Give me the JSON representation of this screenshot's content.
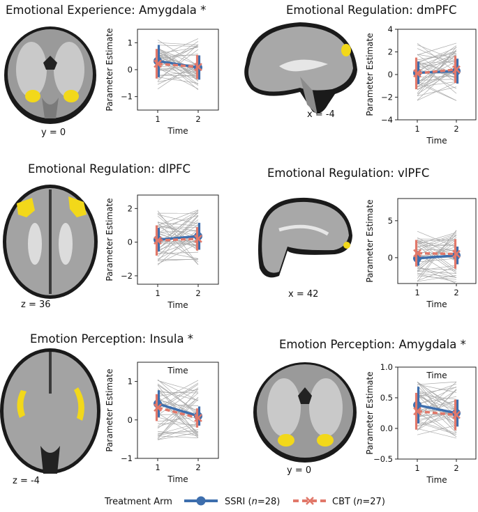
{
  "colors": {
    "ssri": "#3d6ead",
    "cbt": "#e1786a",
    "subject_lines": "#a8a8a8",
    "activation": "#f2d81a",
    "brain_gray": "#8a8a8a"
  },
  "legend": {
    "title": "Treatment Arm",
    "ssri_label": "SSRI (",
    "ssri_n": "n",
    "ssri_count": "=28)",
    "cbt_label": "CBT (",
    "cbt_n": "n",
    "cbt_count": "=27)"
  },
  "panels": [
    {
      "title": "Emotional Experience: Amygdala *",
      "brain_view": "coronal",
      "coord": "y = 0"
    },
    {
      "title": "Emotional Regulation: dmPFC",
      "brain_view": "sagittal",
      "coord": "x = -4"
    },
    {
      "title": "Emotional Regulation: dlPFC",
      "brain_view": "axial",
      "coord": "z = 36"
    },
    {
      "title": "Emotional Regulation: vlPFC",
      "brain_view": "sagittal-lateral",
      "coord": "x = 42"
    },
    {
      "title": "Emotion Perception: Insula *",
      "brain_view": "axial",
      "coord": "z = -4"
    },
    {
      "title": "Emotion Perception: Amygdala *",
      "brain_view": "coronal",
      "coord": "y = 0"
    }
  ],
  "chart_data": [
    {
      "type": "line",
      "panel_title": "Emotional Experience: Amygdala *",
      "xlabel": "Time",
      "ylabel": "Parameter Estimate",
      "x": [
        1,
        2
      ],
      "xticks": [
        "1",
        "2"
      ],
      "ylim": [
        -1.5,
        1.5
      ],
      "yticks": [
        "−1",
        "0",
        "1"
      ],
      "ytick_values": [
        -1,
        0,
        1
      ],
      "series": [
        {
          "name": "SSRI",
          "values": [
            0.32,
            0.08
          ],
          "error": [
            0.6,
            0.45
          ]
        },
        {
          "name": "CBT",
          "values": [
            0.22,
            0.1
          ],
          "error": [
            0.55,
            0.45
          ]
        }
      ]
    },
    {
      "type": "line",
      "panel_title": "Emotional Regulation: dmPFC",
      "xlabel": "Time",
      "ylabel": "Parameter Estimate",
      "x": [
        1,
        2
      ],
      "xticks": [
        "1",
        "2"
      ],
      "ylim": [
        -4,
        4
      ],
      "yticks": [
        "−4",
        "−2",
        "0",
        "2",
        "4"
      ],
      "ytick_values": [
        -4,
        -2,
        0,
        2,
        4
      ],
      "series": [
        {
          "name": "SSRI",
          "values": [
            0.15,
            0.3
          ],
          "error": [
            1.0,
            1.1
          ]
        },
        {
          "name": "CBT",
          "values": [
            0.1,
            0.45
          ],
          "error": [
            1.4,
            1.2
          ]
        }
      ]
    },
    {
      "type": "line",
      "panel_title": "Emotional Regulation: dlPFC",
      "xlabel": "Time",
      "ylabel": "Parameter Estimate",
      "x": [
        1,
        2
      ],
      "xticks": [
        "1",
        "2"
      ],
      "ylim": [
        -2.5,
        2.8
      ],
      "yticks": [
        "−2",
        "0",
        "2"
      ],
      "ytick_values": [
        -2,
        0,
        2
      ],
      "series": [
        {
          "name": "SSRI",
          "values": [
            0.15,
            0.35
          ],
          "error": [
            0.7,
            0.8
          ]
        },
        {
          "name": "CBT",
          "values": [
            0.1,
            0.2
          ],
          "error": [
            0.9,
            0.7
          ]
        }
      ]
    },
    {
      "type": "line",
      "panel_title": "Emotional Regulation: vlPFC",
      "xlabel": "Time",
      "ylabel": "Parameter Estimate",
      "x": [
        1,
        2
      ],
      "xticks": [
        "1",
        "2"
      ],
      "ylim": [
        -3.5,
        8
      ],
      "yticks": [
        "0",
        "5"
      ],
      "ytick_values": [
        0,
        5
      ],
      "series": [
        {
          "name": "SSRI",
          "values": [
            -0.1,
            0.3
          ],
          "error": [
            1.0,
            1.2
          ]
        },
        {
          "name": "CBT",
          "values": [
            0.6,
            0.5
          ],
          "error": [
            1.8,
            2.0
          ]
        }
      ]
    },
    {
      "type": "line",
      "panel_title": "Emotion Perception: Insula *",
      "xlabel": "Time",
      "ylabel": "Parameter Estimate",
      "x": [
        1,
        2
      ],
      "xticks": [
        "1",
        "2"
      ],
      "ylim": [
        -1,
        1.5
      ],
      "yticks": [
        "−1",
        "0",
        "1"
      ],
      "ytick_values": [
        -1,
        0,
        1
      ],
      "annotation": "Time",
      "series": [
        {
          "name": "SSRI",
          "values": [
            0.42,
            0.1
          ],
          "error": [
            0.35,
            0.25
          ]
        },
        {
          "name": "CBT",
          "values": [
            0.32,
            0.05
          ],
          "error": [
            0.35,
            0.25
          ]
        }
      ]
    },
    {
      "type": "line",
      "panel_title": "Emotion Perception: Amygdala *",
      "xlabel": "Time",
      "ylabel": "Parameter Estimate",
      "x": [
        1,
        2
      ],
      "xticks": [
        "1",
        "2"
      ],
      "ylim": [
        -0.5,
        1.0
      ],
      "yticks": [
        "−0.5",
        "0.0",
        "0.5",
        "1.0"
      ],
      "ytick_values": [
        -0.5,
        0,
        0.5,
        1.0
      ],
      "annotation": "Time",
      "series": [
        {
          "name": "SSRI",
          "values": [
            0.38,
            0.25
          ],
          "error": [
            0.3,
            0.22
          ]
        },
        {
          "name": "CBT",
          "values": [
            0.28,
            0.22
          ],
          "error": [
            0.3,
            0.25
          ]
        }
      ]
    }
  ]
}
